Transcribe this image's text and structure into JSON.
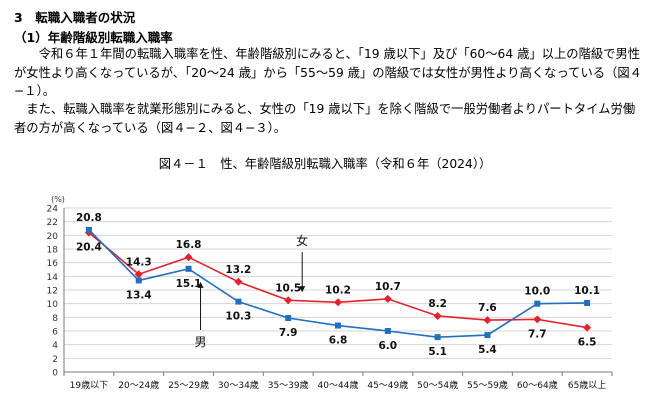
{
  "section": {
    "heading": "3　転職入職者の状況",
    "subheading": "（1）年齢階級別転職入職率"
  },
  "paragraphs": [
    "令和６年１年間の転職入職率を性、年齢階級別にみると、「19 歳以下」及び「60～64 歳」以上の階級で男性が女性より高くなっているが、「20～24 歳」から「55～59 歳」の階級では女性が男性より高くなっている（図４−１）。",
    "また、転職入職率を就業形態別にみると、女性の「19 歳以下」を除く階級で一般労働者よりパートタイム労働者の方が高くなっている（図４−２、図４−３）。"
  ],
  "figure": {
    "title": "図４－１　性、年齢階級別転職入職率（令和６年（2024））"
  },
  "chart_data": {
    "type": "line",
    "title": "図４－１　性、年齢階級別転職入職率（令和６年（2024））",
    "ylabel": "(%)",
    "ylim": [
      0,
      24
    ],
    "yticks": [
      0,
      2,
      4,
      6,
      8,
      10,
      12,
      14,
      16,
      18,
      20,
      22,
      24
    ],
    "categories": [
      "19歳以下",
      "20～24歳",
      "25～29歳",
      "30～34歳",
      "35～39歳",
      "40～44歳",
      "45～49歳",
      "50～54歳",
      "55～59歳",
      "60～64歳",
      "65歳以上"
    ],
    "series": [
      {
        "name": "女",
        "color": "#e8202a",
        "marker": "diamond",
        "values": [
          20.4,
          14.3,
          16.8,
          13.2,
          10.5,
          10.2,
          10.7,
          8.2,
          7.6,
          7.7,
          6.5
        ],
        "labels": [
          "20.4",
          "14.3",
          "16.8",
          "13.2",
          "10.5",
          "10.2",
          "10.7",
          "8.2",
          "7.6",
          "7.7",
          "6.5"
        ]
      },
      {
        "name": "男",
        "color": "#1f6fc2",
        "marker": "square",
        "values": [
          20.8,
          13.4,
          15.1,
          10.3,
          7.9,
          6.8,
          6.0,
          5.1,
          5.4,
          10.0,
          10.1
        ],
        "labels": [
          "20.8",
          "13.4",
          "15.1",
          "10.3",
          "7.9",
          "6.8",
          "6.0",
          "5.1",
          "5.4",
          "10.0",
          "10.1"
        ]
      }
    ],
    "annotations": [
      {
        "text": "女",
        "series": "女"
      },
      {
        "text": "男",
        "series": "男"
      }
    ]
  }
}
